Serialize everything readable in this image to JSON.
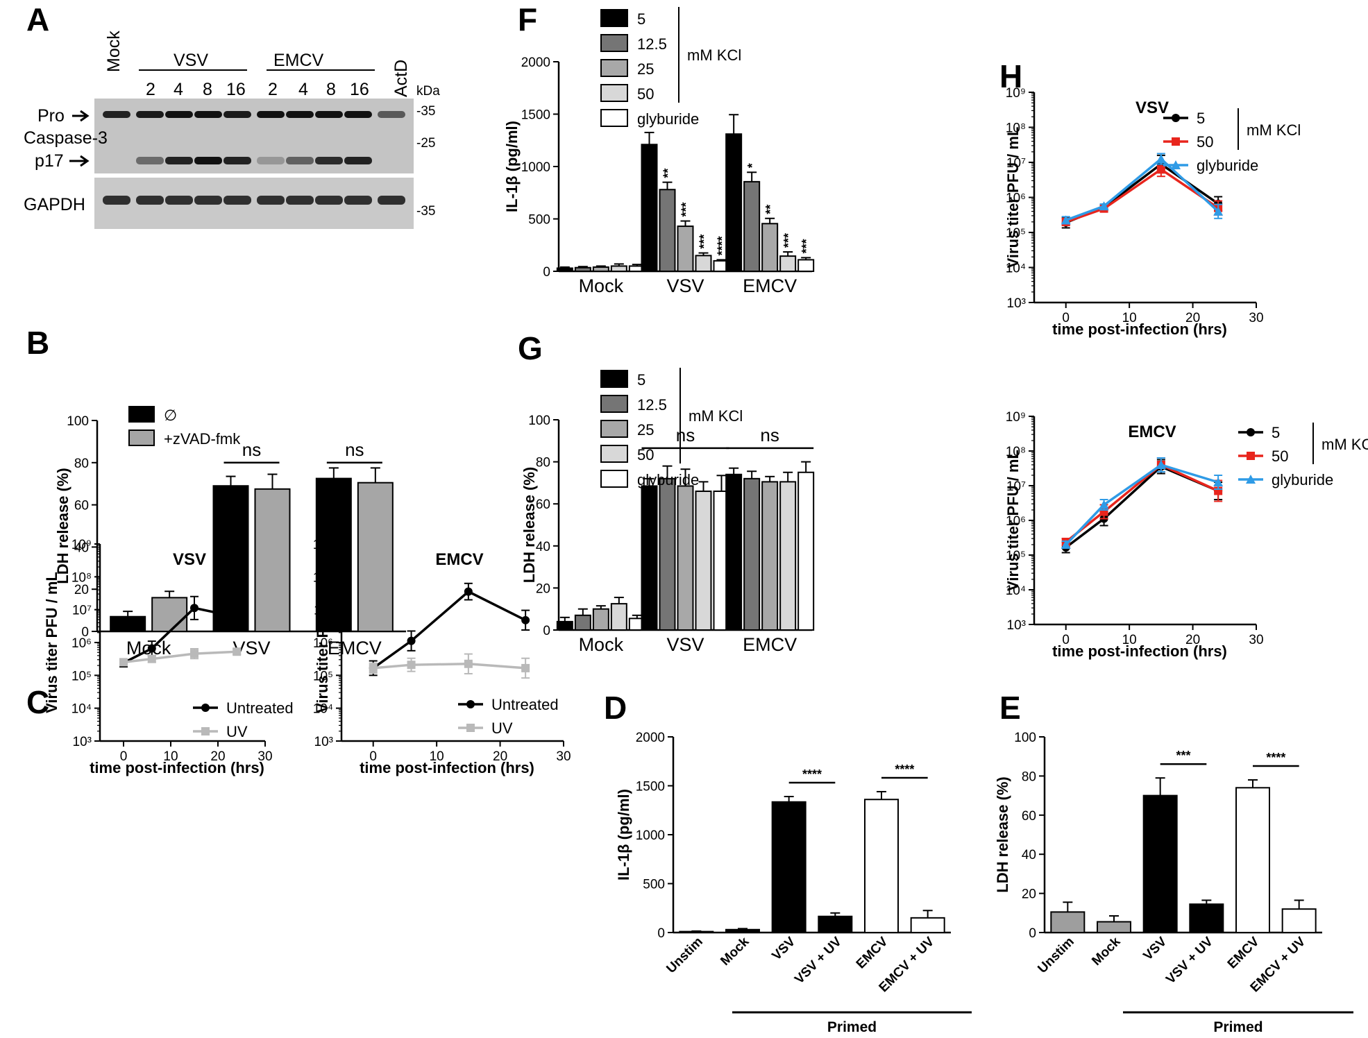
{
  "panel_labels": {
    "A": "A",
    "B": "B",
    "C": "C",
    "D": "D",
    "E": "E",
    "F": "F",
    "G": "G",
    "H": "H"
  },
  "colors": {
    "k5": "#000000",
    "k12": "#757575",
    "k25": "#a8a8a8",
    "k50": "#d8d8d8",
    "gly": "#ffffff",
    "zvad": "#a6a6a6",
    "untreated": "#000000",
    "uv": "#b9b9b9",
    "red": "#e8251d",
    "blue": "#2f9be6",
    "unstim": "#9e9e9e"
  },
  "blot": {
    "lanes": [
      "Mock",
      "2",
      "4",
      "8",
      "16",
      "2",
      "4",
      "8",
      "16",
      "ActD"
    ],
    "group_vsv": "VSV",
    "group_emcv": "EMCV",
    "kda": "kDa",
    "markers": [
      "-35",
      "-25",
      "-35"
    ],
    "labels": {
      "pro": "Pro",
      "caspase": "Caspase-3",
      "p17": "p17",
      "gapdh": "GAPDH"
    }
  },
  "chart_data": [
    {
      "panel": "B",
      "type": "bar",
      "ylabel": "LDH release (%)",
      "ylim": [
        0,
        100
      ],
      "yticks": [
        "0",
        "20",
        "40",
        "60",
        "80",
        "100"
      ],
      "categories": [
        "Mock",
        "VSV",
        "EMCV"
      ],
      "series": [
        {
          "name": "∅",
          "color": "k5",
          "values": [
            7,
            69,
            72.5
          ],
          "errors": [
            2.5,
            4.5,
            5
          ]
        },
        {
          "name": "+zVAD-fmk",
          "color": "zvad",
          "values": [
            16,
            67.5,
            70.5
          ],
          "errors": [
            3,
            7,
            7
          ]
        }
      ],
      "annotations": [
        "ns",
        "ns"
      ]
    },
    {
      "panel": "F",
      "type": "bar",
      "ylabel": "IL-1β (pg/ml)",
      "ylim": [
        0,
        2000
      ],
      "yticks": [
        "0",
        "500",
        "1000",
        "1500",
        "2000"
      ],
      "categories": [
        "Mock",
        "VSV",
        "EMCV"
      ],
      "legend_unit": "mM KCl",
      "series": [
        {
          "name": "5",
          "color": "k5",
          "values": [
            30,
            1210,
            1310
          ],
          "errors": [
            10,
            115,
            185
          ]
        },
        {
          "name": "12.5",
          "color": "k12",
          "values": [
            35,
            780,
            855
          ],
          "errors": [
            10,
            70,
            90
          ]
        },
        {
          "name": "25",
          "color": "k25",
          "values": [
            40,
            430,
            455
          ],
          "errors": [
            10,
            50,
            50
          ]
        },
        {
          "name": "50",
          "color": "k50",
          "values": [
            50,
            150,
            145
          ],
          "errors": [
            20,
            25,
            40
          ]
        },
        {
          "name": "glyburide",
          "color": "gly",
          "values": [
            50,
            100,
            110
          ],
          "errors": [
            15,
            10,
            20
          ]
        }
      ],
      "significance": [
        [
          "",
          "",
          "",
          "",
          ""
        ],
        [
          "",
          "**",
          "***",
          "***",
          "****"
        ],
        [
          "",
          "*",
          "**",
          "***",
          "***"
        ]
      ]
    },
    {
      "panel": "G",
      "type": "bar",
      "ylabel": "LDH release (%)",
      "ylim": [
        0,
        100
      ],
      "yticks": [
        "0",
        "20",
        "40",
        "60",
        "80",
        "100"
      ],
      "categories": [
        "Mock",
        "VSV",
        "EMCV"
      ],
      "legend_unit": "mM KCl",
      "series": [
        {
          "name": "5",
          "color": "k5",
          "values": [
            4,
            68.5,
            74
          ],
          "errors": [
            2,
            3.5,
            3
          ]
        },
        {
          "name": "12.5",
          "color": "k12",
          "values": [
            7,
            72,
            72
          ],
          "errors": [
            3,
            6,
            3.5
          ]
        },
        {
          "name": "25",
          "color": "k25",
          "values": [
            10,
            68.5,
            70.5
          ],
          "errors": [
            1.5,
            8,
            2.5
          ]
        },
        {
          "name": "50",
          "color": "k50",
          "values": [
            12.5,
            66,
            70.5
          ],
          "errors": [
            3,
            4.5,
            4.5
          ]
        },
        {
          "name": "glyburide",
          "color": "gly",
          "values": [
            5.5,
            66,
            75
          ],
          "errors": [
            1.5,
            7.5,
            5
          ]
        }
      ],
      "annotations": [
        "ns",
        "ns"
      ]
    },
    {
      "panel": "D",
      "type": "bar",
      "ylabel": "IL-1β (pg/ml)",
      "ylim": [
        0,
        2000
      ],
      "yticks": [
        "0",
        "500",
        "1000",
        "1500",
        "2000"
      ],
      "categories": [
        "Unstim",
        "Mock",
        "VSV",
        "VSV + UV",
        "EMCV",
        "EMCV + UV"
      ],
      "values": [
        10,
        30,
        1335,
        165,
        1360,
        150
      ],
      "errors": [
        5,
        10,
        55,
        35,
        80,
        75
      ],
      "bar_colors": [
        "k5",
        "k5",
        "k5",
        "k5",
        "gly",
        "gly"
      ],
      "bracket_label": "Primed",
      "significance": [
        "****",
        "****"
      ]
    },
    {
      "panel": "E",
      "type": "bar",
      "ylabel": "LDH release (%)",
      "ylim": [
        0,
        100
      ],
      "yticks": [
        "0",
        "20",
        "40",
        "60",
        "80",
        "100"
      ],
      "categories": [
        "Unstim",
        "Mock",
        "VSV",
        "VSV + UV",
        "EMCV",
        "EMCV + UV"
      ],
      "values": [
        10.5,
        5.5,
        70,
        14.5,
        74,
        12
      ],
      "errors": [
        5,
        3,
        9,
        2,
        4,
        4.5
      ],
      "bar_colors": [
        "unstim",
        "unstim",
        "k5",
        "k5",
        "gly",
        "gly"
      ],
      "bracket_label": "Primed",
      "significance": [
        "***",
        "****"
      ]
    },
    {
      "panel": "C-VSV",
      "type": "line",
      "title": "VSV",
      "xlabel": "time post-infection (hrs)",
      "ylabel": "Virus titer PFU / mL",
      "xlim": [
        -5,
        30
      ],
      "xticks": [
        "0",
        "10",
        "20",
        "30"
      ],
      "ylim_log10": [
        3,
        9
      ],
      "x": [
        0,
        6,
        15,
        24
      ],
      "series": [
        {
          "name": "Untreated",
          "color": "untreated",
          "marker": "circle",
          "log10_values": [
            5.38,
            5.82,
            7.05,
            6.78
          ],
          "log10_err": [
            0.12,
            0.22,
            0.35,
            0.35
          ]
        },
        {
          "name": "UV",
          "color": "uv",
          "marker": "square",
          "log10_values": [
            5.4,
            5.5,
            5.66,
            5.72
          ],
          "log10_err": [
            0.1,
            0.1,
            0.15,
            0.08
          ]
        }
      ]
    },
    {
      "panel": "C-EMCV",
      "type": "line",
      "title": "EMCV",
      "xlabel": "time post-infection (hrs)",
      "ylabel": "Virus titer PFU / mL",
      "xlim": [
        -5,
        30
      ],
      "xticks": [
        "0",
        "10",
        "20",
        "30"
      ],
      "ylim_log10": [
        3,
        9
      ],
      "x": [
        0,
        6,
        15,
        24
      ],
      "series": [
        {
          "name": "Untreated",
          "color": "untreated",
          "marker": "circle",
          "log10_values": [
            5.22,
            6.05,
            7.55,
            6.68
          ],
          "log10_err": [
            0.22,
            0.3,
            0.25,
            0.3
          ]
        },
        {
          "name": "UV",
          "color": "uv",
          "marker": "square",
          "log10_values": [
            5.22,
            5.32,
            5.35,
            5.22
          ],
          "log10_err": [
            0.15,
            0.2,
            0.3,
            0.3
          ]
        }
      ]
    },
    {
      "panel": "H-VSV",
      "type": "line",
      "title": "VSV",
      "xlabel": "time post-infection (hrs)",
      "ylabel": "Virus titer PFU / mL",
      "xlim": [
        -5,
        30
      ],
      "xticks": [
        "0",
        "10",
        "20",
        "30"
      ],
      "ylim_log10": [
        3,
        9
      ],
      "x": [
        0,
        6,
        15,
        24
      ],
      "legend_unit": "mM KCl",
      "series": [
        {
          "name": "5",
          "color": "untreated",
          "marker": "circle",
          "log10_values": [
            5.28,
            5.72,
            6.95,
            5.82
          ],
          "log10_err": [
            0.15,
            0.06,
            0.25,
            0.2
          ]
        },
        {
          "name": "50",
          "color": "red",
          "marker": "square",
          "log10_values": [
            5.3,
            5.68,
            6.8,
            5.7
          ],
          "log10_err": [
            0.1,
            0.06,
            0.2,
            0.2
          ]
        },
        {
          "name": "glyburide",
          "color": "blue",
          "marker": "triangle",
          "log10_values": [
            5.35,
            5.75,
            7.1,
            5.6
          ],
          "log10_err": [
            0.1,
            0.06,
            0.15,
            0.2
          ]
        }
      ]
    },
    {
      "panel": "H-EMCV",
      "type": "line",
      "title": "EMCV",
      "xlabel": "time post-infection (hrs)",
      "ylabel": "Virus titer PFU / mL",
      "xlim": [
        -5,
        30
      ],
      "xticks": [
        "0",
        "10",
        "20",
        "30"
      ],
      "ylim_log10": [
        3,
        9
      ],
      "x": [
        0,
        6,
        15,
        24
      ],
      "legend_unit": "mM KCl",
      "series": [
        {
          "name": "5",
          "color": "untreated",
          "marker": "circle",
          "log10_values": [
            5.22,
            6.05,
            7.55,
            6.85
          ],
          "log10_err": [
            0.15,
            0.2,
            0.2,
            0.25
          ]
        },
        {
          "name": "50",
          "color": "red",
          "marker": "square",
          "log10_values": [
            5.38,
            6.25,
            7.6,
            6.85
          ],
          "log10_err": [
            0.1,
            0.2,
            0.2,
            0.3
          ]
        },
        {
          "name": "glyburide",
          "color": "blue",
          "marker": "triangle",
          "log10_values": [
            5.3,
            6.45,
            7.6,
            7.1
          ],
          "log10_err": [
            0.1,
            0.15,
            0.2,
            0.2
          ]
        }
      ]
    }
  ]
}
